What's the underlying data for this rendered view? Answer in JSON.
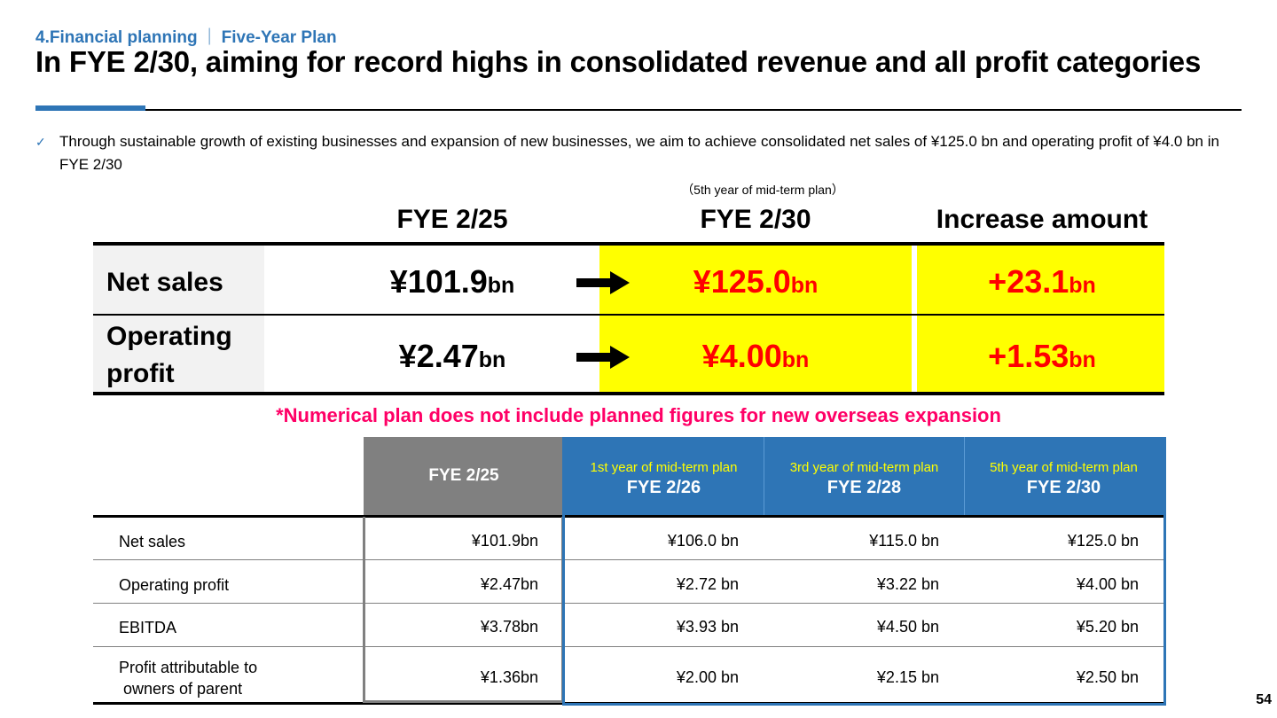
{
  "header": {
    "section": "4.Financial planning",
    "subsection": "Five-Year Plan",
    "title": "In FYE 2/30, aiming for record highs in consolidated revenue and all profit categories"
  },
  "bullet": {
    "icon": "check-icon",
    "text": "Through sustainable growth of existing businesses and expansion of new businesses, we aim to achieve consolidated net sales of ¥125.0 bn and operating profit of ¥4.0 bn in FYE 2/30"
  },
  "summary": {
    "note": "（5th year of mid-term plan）",
    "headers": [
      "FYE 2/25",
      "FYE 2/30",
      "Increase amount"
    ],
    "rows": [
      {
        "label": "Net sales",
        "from": "¥101.9",
        "from_unit": "bn",
        "to": "¥125.0",
        "to_unit": "bn",
        "inc": "+23.1",
        "inc_unit": "bn"
      },
      {
        "label_line1": "Operating",
        "label_line2": "profit",
        "from": "¥2.47",
        "from_unit": "bn",
        "to": "¥4.00",
        "to_unit": "bn",
        "inc": "+1.53",
        "inc_unit": "bn"
      }
    ],
    "colors": {
      "highlight": "#FFFF00",
      "increase": "#FF0000"
    }
  },
  "footnote": "*Numerical plan does not include planned figures for new overseas expansion",
  "plan_table": {
    "columns": [
      {
        "sub": "",
        "label": "FYE 2/25"
      },
      {
        "sub": "1st year of mid-term plan",
        "label": "FYE 2/26"
      },
      {
        "sub": "3rd year of mid-term plan",
        "label": "FYE 2/28"
      },
      {
        "sub": "5th year of mid-term plan",
        "label": "FYE 2/30"
      }
    ],
    "rows": [
      {
        "label": "Net sales",
        "values": [
          "¥101.9bn",
          "¥106.0 bn",
          "¥115.0 bn",
          "¥125.0 bn"
        ]
      },
      {
        "label": "Operating profit",
        "values": [
          "¥2.47bn",
          "¥2.72 bn",
          "¥3.22 bn",
          "¥4.00 bn"
        ]
      },
      {
        "label": "EBITDA",
        "values": [
          "¥3.78bn",
          "¥3.93 bn",
          "¥4.50 bn",
          "¥5.20 bn"
        ]
      },
      {
        "label_line1": "Profit attributable to",
        "label_line2": " owners of parent",
        "values": [
          "¥1.36bn",
          "¥2.00 bn",
          "¥2.15 bn",
          "¥2.50 bn"
        ]
      }
    ],
    "colors": {
      "actual": "#808080",
      "plan": "#2E75B6",
      "plan_sub": "#FFFF00"
    }
  },
  "page_number": "54"
}
